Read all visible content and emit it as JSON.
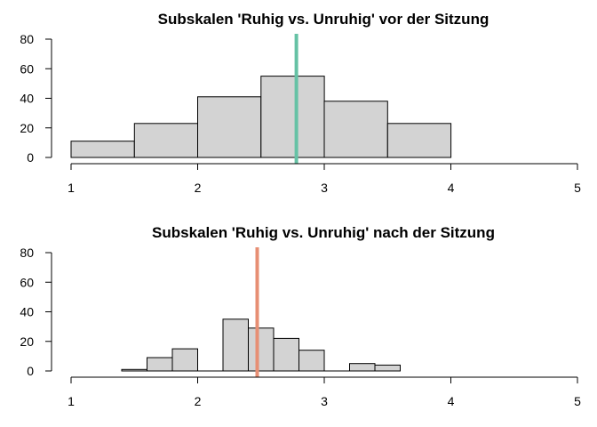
{
  "chart_data": [
    {
      "type": "bar",
      "title": "Subskalen 'Ruhig vs. Unruhig' vor der Sitzung",
      "xlabel": "",
      "ylabel": "",
      "xlim": [
        1,
        5
      ],
      "ylim": [
        0,
        80
      ],
      "x_ticks": [
        "1",
        "2",
        "3",
        "4",
        "5"
      ],
      "y_ticks": [
        "0",
        "20",
        "40",
        "60",
        "80"
      ],
      "bins": [
        {
          "start": 1.0,
          "end": 1.5,
          "count": 11
        },
        {
          "start": 1.5,
          "end": 2.0,
          "count": 23
        },
        {
          "start": 2.0,
          "end": 2.5,
          "count": 41
        },
        {
          "start": 2.5,
          "end": 3.0,
          "count": 55
        },
        {
          "start": 3.0,
          "end": 3.5,
          "count": 38
        },
        {
          "start": 3.5,
          "end": 4.0,
          "count": 23
        }
      ],
      "reference_line": {
        "x": 2.78,
        "color": "#66c2a5"
      },
      "grid": false,
      "bar_color": "#d3d3d3"
    },
    {
      "type": "bar",
      "title": "Subskalen 'Ruhig vs. Unruhig' nach der Sitzung",
      "xlabel": "",
      "ylabel": "",
      "xlim": [
        1,
        5
      ],
      "ylim": [
        0,
        80
      ],
      "x_ticks": [
        "1",
        "2",
        "3",
        "4",
        "5"
      ],
      "y_ticks": [
        "0",
        "20",
        "40",
        "60",
        "80"
      ],
      "bins": [
        {
          "start": 1.4,
          "end": 1.6,
          "count": 1
        },
        {
          "start": 1.6,
          "end": 1.8,
          "count": 9
        },
        {
          "start": 1.8,
          "end": 2.0,
          "count": 15
        },
        {
          "start": 2.0,
          "end": 2.2,
          "count": 0
        },
        {
          "start": 2.2,
          "end": 2.4,
          "count": 35
        },
        {
          "start": 2.4,
          "end": 2.6,
          "count": 29
        },
        {
          "start": 2.6,
          "end": 2.8,
          "count": 22
        },
        {
          "start": 2.8,
          "end": 3.0,
          "count": 14
        },
        {
          "start": 3.0,
          "end": 3.2,
          "count": 0
        },
        {
          "start": 3.2,
          "end": 3.4,
          "count": 5
        },
        {
          "start": 3.4,
          "end": 3.6,
          "count": 4
        }
      ],
      "reference_line": {
        "x": 2.47,
        "color": "#e78f74"
      },
      "grid": false,
      "bar_color": "#d3d3d3"
    }
  ]
}
